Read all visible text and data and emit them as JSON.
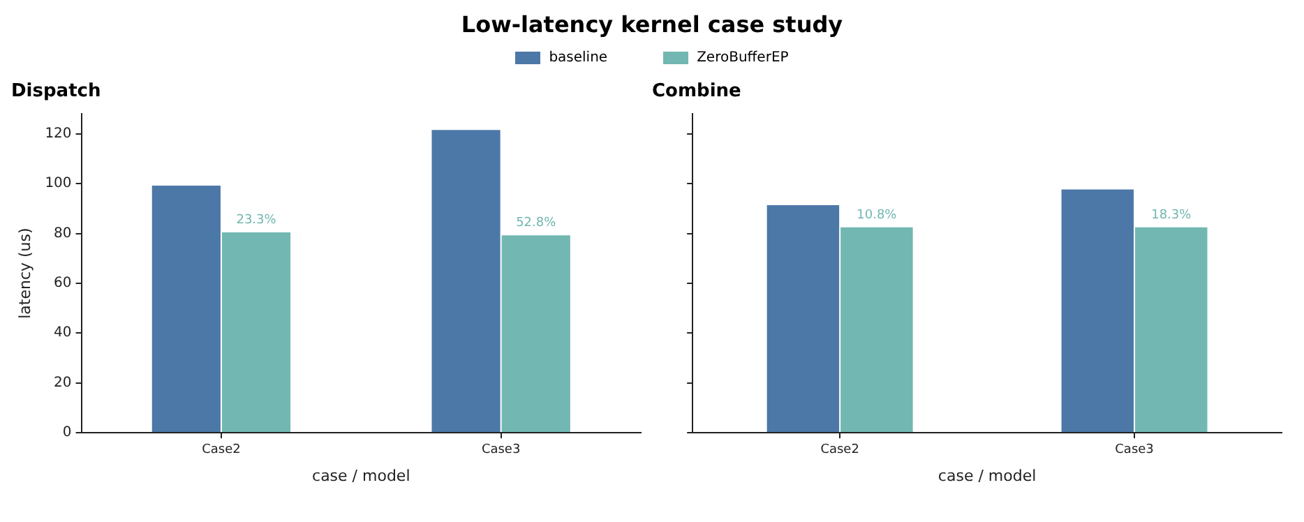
{
  "chart_data": [
    {
      "type": "bar",
      "title": "Low-latency kernel case study",
      "subtitle": "Dispatch",
      "xlabel": "case / model",
      "ylabel": "latency (us)",
      "categories": [
        "Case2",
        "Case3"
      ],
      "legend": "top",
      "series": [
        {
          "name": "baseline",
          "color": "#4c78a8",
          "values": [
            99.5,
            121.8
          ]
        },
        {
          "name": "ZeroBufferEP",
          "color": "#72b7b2",
          "values": [
            80.7,
            79.5
          ]
        }
      ],
      "annotations": [
        {
          "text": "23.3%",
          "x": "Case2",
          "y": 80.7
        },
        {
          "text": "52.8%",
          "x": "Case3",
          "y": 79.5
        }
      ],
      "ylim": [
        0,
        128
      ],
      "yticks": [
        0,
        20,
        40,
        60,
        80,
        100,
        120
      ],
      "grid": false
    },
    {
      "type": "bar",
      "title": "Combine",
      "xlabel": "case / model",
      "categories": [
        "Case2",
        "Case3"
      ],
      "series": [
        {
          "color": "#4c78a8",
          "values": [
            91.6,
            97.9
          ]
        },
        {
          "color": "#72b7b2",
          "values": [
            82.7,
            82.7
          ]
        }
      ],
      "annotations": [
        {
          "text": "10.8%",
          "x": "Case2",
          "y": 82.7
        },
        {
          "text": "18.3%",
          "x": "Case3",
          "y": 82.7
        }
      ],
      "ylim": [
        0,
        128
      ],
      "yticks": [
        0,
        20,
        40,
        60,
        80,
        100,
        120
      ],
      "tick_labels": "x",
      "grid": false
    }
  ]
}
